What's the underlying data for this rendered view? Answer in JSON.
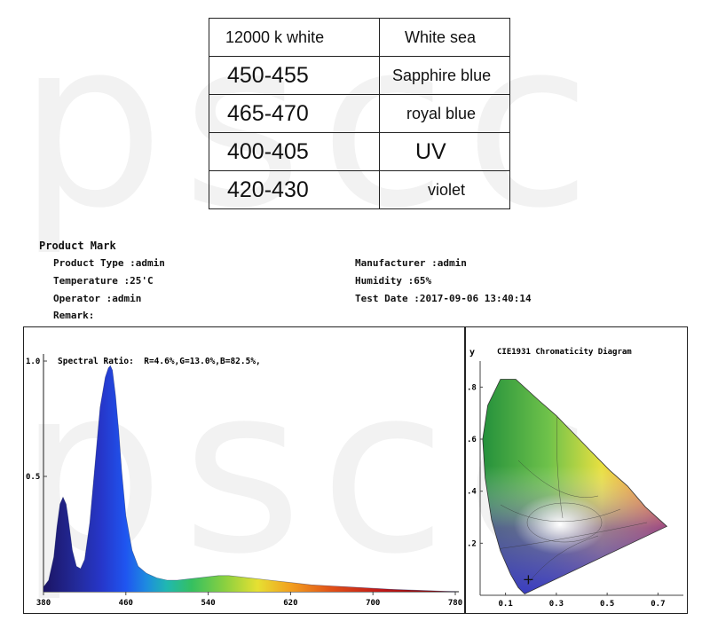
{
  "watermark": "pscc",
  "wavelength_table": {
    "header": [
      "12000 k white",
      "White sea"
    ],
    "rows": [
      [
        "450-455",
        "Sapphire blue"
      ],
      [
        "465-470",
        "royal blue"
      ],
      [
        "400-405",
        "UV"
      ],
      [
        "420-430",
        "violet"
      ]
    ]
  },
  "product": {
    "heading": "Product Mark",
    "type": "Product Type :admin",
    "temperature": "Temperature :25'C",
    "operator": "Operator :admin",
    "remark": "Remark:",
    "manufacturer": "Manufacturer :admin",
    "humidity": "Humidity :65%",
    "test_date": "Test Date :2017-09-06 13:40:14"
  },
  "chart_data": [
    {
      "type": "area",
      "title": "",
      "annotation": "Spectral Ratio:  R=4.6%,G=13.0%,B=82.5%,",
      "xlim": [
        380,
        780
      ],
      "ylim": [
        0,
        1.0
      ],
      "xticks": [
        "380",
        "460",
        "540",
        "620",
        "700",
        "780"
      ],
      "yticks": [
        "1.0",
        "0.5"
      ],
      "x": [
        380,
        385,
        390,
        393,
        396,
        399,
        402,
        404,
        408,
        412,
        416,
        420,
        425,
        430,
        435,
        440,
        443,
        445,
        447,
        450,
        453,
        456,
        460,
        466,
        472,
        480,
        490,
        500,
        510,
        520,
        530,
        540,
        550,
        560,
        570,
        580,
        600,
        620,
        640,
        660,
        680,
        700,
        720,
        740,
        760,
        780
      ],
      "y": [
        0.02,
        0.05,
        0.15,
        0.28,
        0.38,
        0.41,
        0.38,
        0.32,
        0.18,
        0.11,
        0.1,
        0.14,
        0.3,
        0.55,
        0.8,
        0.93,
        0.97,
        0.98,
        0.96,
        0.85,
        0.7,
        0.52,
        0.33,
        0.18,
        0.11,
        0.08,
        0.06,
        0.05,
        0.05,
        0.055,
        0.06,
        0.065,
        0.07,
        0.07,
        0.065,
        0.06,
        0.05,
        0.04,
        0.03,
        0.025,
        0.02,
        0.015,
        0.01,
        0.007,
        0.004,
        0.0
      ]
    },
    {
      "type": "scatter",
      "title": "CIE1931 Chromaticity Diagram",
      "ylabel": "y",
      "xlim": [
        0,
        0.8
      ],
      "ylim": [
        0,
        0.9
      ],
      "xticks": [
        "0.1",
        "0.3",
        "0.5",
        "0.7"
      ],
      "yticks": [
        ".8",
        ".6",
        ".4",
        ".2"
      ],
      "point": {
        "x": 0.19,
        "y": 0.06
      },
      "locus": [
        [
          0.175,
          0.005
        ],
        [
          0.15,
          0.03
        ],
        [
          0.12,
          0.08
        ],
        [
          0.08,
          0.17
        ],
        [
          0.045,
          0.29
        ],
        [
          0.02,
          0.45
        ],
        [
          0.01,
          0.6
        ],
        [
          0.03,
          0.73
        ],
        [
          0.08,
          0.83
        ],
        [
          0.14,
          0.83
        ],
        [
          0.23,
          0.75
        ],
        [
          0.3,
          0.69
        ],
        [
          0.37,
          0.62
        ],
        [
          0.44,
          0.55
        ],
        [
          0.51,
          0.48
        ],
        [
          0.58,
          0.42
        ],
        [
          0.65,
          0.34
        ],
        [
          0.735,
          0.265
        ]
      ]
    }
  ]
}
